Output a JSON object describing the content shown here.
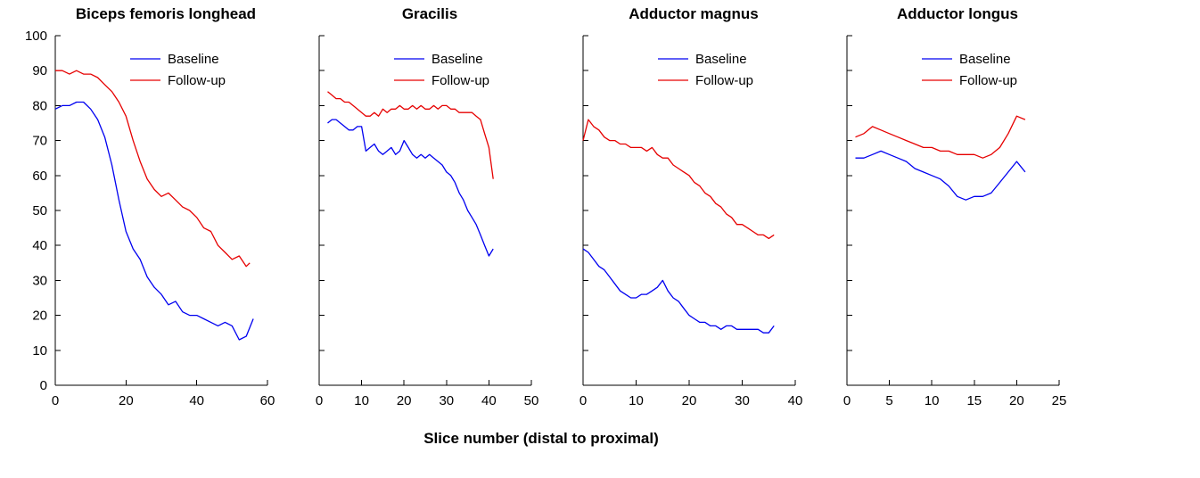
{
  "xlabel": "Slice number (distal to proximal)",
  "colors": {
    "axis": "#000000",
    "baseline": "#0000f0",
    "followup": "#e60000"
  },
  "chart_data": [
    {
      "type": "line",
      "title": "Biceps femoris longhead",
      "xlim": [
        0,
        60
      ],
      "ylim": [
        0,
        100
      ],
      "xticks": [
        0,
        20,
        40,
        60
      ],
      "yticks": [
        0,
        10,
        20,
        30,
        40,
        50,
        60,
        70,
        80,
        90,
        100
      ],
      "show_ytick_labels": true,
      "legend_position": "upper-left",
      "series": [
        {
          "name": "Baseline",
          "color": "#0000f0",
          "x": [
            0,
            2,
            4,
            6,
            8,
            10,
            12,
            14,
            16,
            18,
            20,
            22,
            24,
            26,
            28,
            30,
            32,
            34,
            36,
            38,
            40,
            42,
            44,
            46,
            48,
            50,
            52,
            54,
            56
          ],
          "y": [
            79,
            80,
            80,
            81,
            81,
            79,
            76,
            71,
            63,
            53,
            44,
            39,
            36,
            31,
            28,
            26,
            23,
            24,
            21,
            20,
            20,
            19,
            18,
            17,
            18,
            17,
            13,
            14,
            19
          ]
        },
        {
          "name": "Follow-up",
          "color": "#e60000",
          "x": [
            0,
            2,
            4,
            6,
            8,
            10,
            12,
            14,
            16,
            18,
            20,
            22,
            24,
            26,
            28,
            30,
            32,
            34,
            36,
            38,
            40,
            42,
            44,
            46,
            48,
            50,
            52,
            54,
            55
          ],
          "y": [
            90,
            90,
            89,
            90,
            89,
            89,
            88,
            86,
            84,
            81,
            77,
            70,
            64,
            59,
            56,
            54,
            55,
            53,
            51,
            50,
            48,
            45,
            44,
            40,
            38,
            36,
            37,
            34,
            35
          ]
        }
      ]
    },
    {
      "type": "line",
      "title": "Gracilis",
      "xlim": [
        0,
        50
      ],
      "ylim": [
        0,
        100
      ],
      "xticks": [
        0,
        10,
        20,
        30,
        40,
        50
      ],
      "yticks": [
        0,
        10,
        20,
        30,
        40,
        50,
        60,
        70,
        80,
        90,
        100
      ],
      "show_ytick_labels": false,
      "legend_position": "upper-left",
      "series": [
        {
          "name": "Baseline",
          "color": "#0000f0",
          "x": [
            2,
            3,
            4,
            5,
            6,
            7,
            8,
            9,
            10,
            11,
            12,
            13,
            14,
            15,
            16,
            17,
            18,
            19,
            20,
            21,
            22,
            23,
            24,
            25,
            26,
            27,
            28,
            29,
            30,
            31,
            32,
            33,
            34,
            35,
            36,
            37,
            38,
            39,
            40,
            41
          ],
          "y": [
            75,
            76,
            76,
            75,
            74,
            73,
            73,
            74,
            74,
            67,
            68,
            69,
            67,
            66,
            67,
            68,
            66,
            67,
            70,
            68,
            66,
            65,
            66,
            65,
            66,
            65,
            64,
            63,
            61,
            60,
            58,
            55,
            53,
            50,
            48,
            46,
            43,
            40,
            37,
            39
          ]
        },
        {
          "name": "Follow-up",
          "color": "#e60000",
          "x": [
            2,
            3,
            4,
            5,
            6,
            7,
            8,
            9,
            10,
            11,
            12,
            13,
            14,
            15,
            16,
            17,
            18,
            19,
            20,
            21,
            22,
            23,
            24,
            25,
            26,
            27,
            28,
            29,
            30,
            31,
            32,
            33,
            34,
            35,
            36,
            37,
            38,
            39,
            40,
            41
          ],
          "y": [
            84,
            83,
            82,
            82,
            81,
            81,
            80,
            79,
            78,
            77,
            77,
            78,
            77,
            79,
            78,
            79,
            79,
            80,
            79,
            79,
            80,
            79,
            80,
            79,
            79,
            80,
            79,
            80,
            80,
            79,
            79,
            78,
            78,
            78,
            78,
            77,
            76,
            72,
            68,
            59
          ]
        }
      ]
    },
    {
      "type": "line",
      "title": "Adductor magnus",
      "xlim": [
        0,
        40
      ],
      "ylim": [
        0,
        100
      ],
      "xticks": [
        0,
        10,
        20,
        30,
        40
      ],
      "yticks": [
        0,
        10,
        20,
        30,
        40,
        50,
        60,
        70,
        80,
        90,
        100
      ],
      "show_ytick_labels": false,
      "legend_position": "upper-left",
      "series": [
        {
          "name": "Baseline",
          "color": "#0000f0",
          "x": [
            0,
            1,
            2,
            3,
            4,
            5,
            6,
            7,
            8,
            9,
            10,
            11,
            12,
            13,
            14,
            15,
            16,
            17,
            18,
            19,
            20,
            21,
            22,
            23,
            24,
            25,
            26,
            27,
            28,
            29,
            30,
            31,
            32,
            33,
            34,
            35,
            36
          ],
          "y": [
            39,
            38,
            36,
            34,
            33,
            31,
            29,
            27,
            26,
            25,
            25,
            26,
            26,
            27,
            28,
            30,
            27,
            25,
            24,
            22,
            20,
            19,
            18,
            18,
            17,
            17,
            16,
            17,
            17,
            16,
            16,
            16,
            16,
            16,
            15,
            15,
            17
          ]
        },
        {
          "name": "Follow-up",
          "color": "#e60000",
          "x": [
            0,
            1,
            2,
            3,
            4,
            5,
            6,
            7,
            8,
            9,
            10,
            11,
            12,
            13,
            14,
            15,
            16,
            17,
            18,
            19,
            20,
            21,
            22,
            23,
            24,
            25,
            26,
            27,
            28,
            29,
            30,
            31,
            32,
            33,
            34,
            35,
            36
          ],
          "y": [
            70,
            76,
            74,
            73,
            71,
            70,
            70,
            69,
            69,
            68,
            68,
            68,
            67,
            68,
            66,
            65,
            65,
            63,
            62,
            61,
            60,
            58,
            57,
            55,
            54,
            52,
            51,
            49,
            48,
            46,
            46,
            45,
            44,
            43,
            43,
            42,
            43
          ]
        }
      ]
    },
    {
      "type": "line",
      "title": "Adductor longus",
      "xlim": [
        0,
        25
      ],
      "ylim": [
        0,
        100
      ],
      "xticks": [
        0,
        5,
        10,
        15,
        20,
        25
      ],
      "yticks": [
        0,
        10,
        20,
        30,
        40,
        50,
        60,
        70,
        80,
        90,
        100
      ],
      "show_ytick_labels": false,
      "legend_position": "upper-left",
      "series": [
        {
          "name": "Baseline",
          "color": "#0000f0",
          "x": [
            1,
            2,
            3,
            4,
            5,
            6,
            7,
            8,
            9,
            10,
            11,
            12,
            13,
            14,
            15,
            16,
            17,
            18,
            19,
            20,
            21
          ],
          "y": [
            65,
            65,
            66,
            67,
            66,
            65,
            64,
            62,
            61,
            60,
            59,
            57,
            54,
            53,
            54,
            54,
            55,
            58,
            61,
            64,
            61
          ]
        },
        {
          "name": "Follow-up",
          "color": "#e60000",
          "x": [
            1,
            2,
            3,
            4,
            5,
            6,
            7,
            8,
            9,
            10,
            11,
            12,
            13,
            14,
            15,
            16,
            17,
            18,
            19,
            20,
            21
          ],
          "y": [
            71,
            72,
            74,
            73,
            72,
            71,
            70,
            69,
            68,
            68,
            67,
            67,
            66,
            66,
            66,
            65,
            66,
            68,
            72,
            77,
            76
          ]
        }
      ]
    }
  ]
}
